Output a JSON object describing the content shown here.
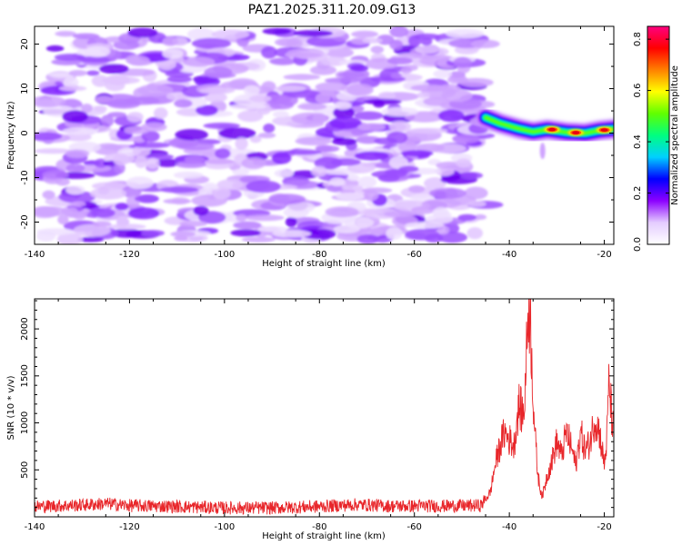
{
  "title": "PAZ1.2025.311.20.09.G13",
  "chart_data": [
    {
      "type": "heatmap",
      "title": "PAZ1.2025.311.20.09.G13",
      "xlabel": "Height of straight line (km)",
      "ylabel": "Frequency (Hz)",
      "xlim": [
        -140,
        -18
      ],
      "ylim": [
        -25,
        24
      ],
      "xticks": [
        -140,
        -120,
        -100,
        -80,
        -60,
        -40,
        -20
      ],
      "yticks": [
        -20,
        -10,
        0,
        10,
        20
      ],
      "background_noise_region_km": [
        -138,
        -45
      ],
      "signal_ridge": {
        "start_km": -45,
        "end_km": -18,
        "centroid_hz": [
          {
            "x": -45,
            "y": 3.5
          },
          {
            "x": -42,
            "y": 2.2
          },
          {
            "x": -38,
            "y": 1.0
          },
          {
            "x": -35,
            "y": 0.3
          },
          {
            "x": -32,
            "y": 0.8
          },
          {
            "x": -28,
            "y": 0.2
          },
          {
            "x": -24,
            "y": 0.0
          },
          {
            "x": -21,
            "y": 0.6
          },
          {
            "x": -18,
            "y": 0.9
          }
        ],
        "peaks": [
          {
            "x": -31,
            "y": 0.8,
            "amp": 0.85
          },
          {
            "x": -26,
            "y": 0.1,
            "amp": 0.85
          },
          {
            "x": -20,
            "y": 0.7,
            "amp": 0.8
          }
        ]
      },
      "colorbar": {
        "label": "Normalized spectral amplitude",
        "range": [
          0.0,
          0.85
        ],
        "ticks": [
          0.0,
          0.2,
          0.4,
          0.6,
          0.8
        ],
        "tick_labels": [
          "0.0",
          "0.2",
          "0.4",
          "0.6",
          "0.8"
        ],
        "colors": [
          "#ffffff",
          "#e4ccff",
          "#8c00ff",
          "#0000ff",
          "#00d0ff",
          "#00ff80",
          "#60ff00",
          "#ffff00",
          "#ff8000",
          "#ff0000",
          "#ff0080"
        ]
      }
    },
    {
      "type": "line",
      "xlabel": "Height of straight line (km)",
      "ylabel": "SNR (10 * v/v)",
      "xlim": [
        -140,
        -18
      ],
      "ylim": [
        0,
        2320
      ],
      "xticks": [
        -140,
        -120,
        -100,
        -80,
        -60,
        -40,
        -20
      ],
      "yticks": [
        500,
        1000,
        1500,
        2000
      ],
      "color": "#e8262a",
      "series": [
        {
          "name": "SNR",
          "points": [
            [
              -140,
              110
            ],
            [
              -130,
              125
            ],
            [
              -125,
              140
            ],
            [
              -120,
              120
            ],
            [
              -110,
              110
            ],
            [
              -100,
              95
            ],
            [
              -90,
              95
            ],
            [
              -80,
              110
            ],
            [
              -72,
              130
            ],
            [
              -65,
              115
            ],
            [
              -55,
              115
            ],
            [
              -46,
              120
            ],
            [
              -44,
              260
            ],
            [
              -43,
              550
            ],
            [
              -42,
              750
            ],
            [
              -41,
              900
            ],
            [
              -40,
              820
            ],
            [
              -39,
              760
            ],
            [
              -38.5,
              1000
            ],
            [
              -38,
              1180
            ],
            [
              -37,
              1080
            ],
            [
              -36.5,
              1550
            ],
            [
              -36,
              2320
            ],
            [
              -35.5,
              2000
            ],
            [
              -35,
              1300
            ],
            [
              -34.5,
              800
            ],
            [
              -34,
              450
            ],
            [
              -33.5,
              300
            ],
            [
              -33,
              220
            ],
            [
              -32,
              450
            ],
            [
              -31,
              600
            ],
            [
              -30,
              800
            ],
            [
              -29,
              650
            ],
            [
              -28,
              900
            ],
            [
              -27,
              750
            ],
            [
              -26,
              550
            ],
            [
              -25,
              900
            ],
            [
              -24,
              700
            ],
            [
              -23,
              800
            ],
            [
              -22,
              1050
            ],
            [
              -21,
              900
            ],
            [
              -20,
              550
            ],
            [
              -19.5,
              800
            ],
            [
              -19,
              1450
            ],
            [
              -18.5,
              1100
            ],
            [
              -18,
              900
            ]
          ]
        }
      ]
    }
  ]
}
